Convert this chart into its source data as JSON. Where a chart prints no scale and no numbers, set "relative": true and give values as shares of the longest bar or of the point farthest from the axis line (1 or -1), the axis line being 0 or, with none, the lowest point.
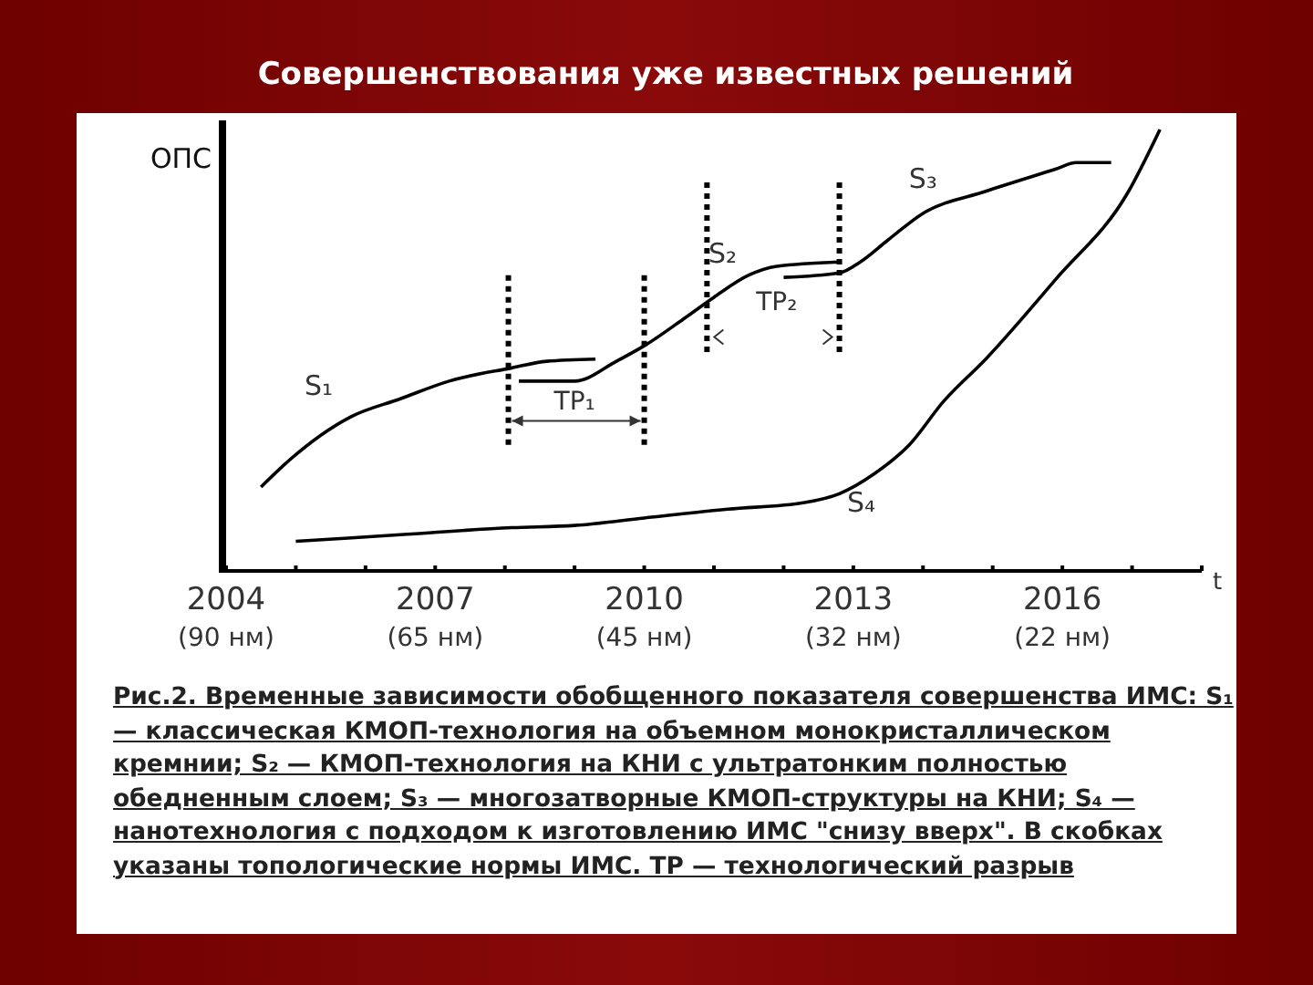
{
  "chart_data": {
    "type": "line",
    "title": "Совершенствования уже известных решений",
    "xlabel": "t",
    "ylabel": "ОПС",
    "relative": true,
    "legend": false,
    "grid": false,
    "marker": "none",
    "line_style": "solid",
    "xlim": [
      2004,
      2018
    ],
    "xticks": [
      2004,
      {
        "value": 2005,
        "label": null
      },
      {
        "value": 2006,
        "label": null
      },
      2007,
      {
        "value": 2008,
        "label": null
      },
      {
        "value": 2009,
        "label": null
      },
      2010,
      {
        "value": 2011,
        "label": null
      },
      {
        "value": 2012,
        "label": null
      },
      2013,
      {
        "value": 2014,
        "label": null
      },
      {
        "value": 2015,
        "label": null
      },
      2016,
      {
        "value": 2017,
        "label": null
      },
      {
        "value": 2018,
        "label": null
      }
    ],
    "series": [
      {
        "name": "S₁",
        "color": "#000000",
        "x": [
          2004.5,
          2004.9,
          2005.8,
          2006.5,
          2007.2,
          2008.1,
          2008.6,
          2009.3
        ],
        "values": [
          0.19,
          0.25,
          0.35,
          0.39,
          0.43,
          0.46,
          0.475,
          0.48
        ]
      },
      {
        "name": "S₂",
        "color": "#000000",
        "x": [
          2008.2,
          2009.0,
          2009.6,
          2010.0,
          2010.6,
          2011.0,
          2011.5,
          2011.9,
          2012.8
        ],
        "values": [
          0.43,
          0.43,
          0.475,
          0.51,
          0.575,
          0.62,
          0.67,
          0.69,
          0.7
        ]
      },
      {
        "name": "S₃",
        "color": "#000000",
        "x": [
          2012.0,
          2012.8,
          2013.1,
          2013.5,
          2014.0,
          2014.9,
          2015.9,
          2016.2,
          2016.7
        ],
        "values": [
          0.665,
          0.675,
          0.7,
          0.75,
          0.81,
          0.86,
          0.91,
          0.925,
          0.925
        ]
      },
      {
        "name": "S₄",
        "color": "#000000",
        "x": [
          2005.0,
          2006.5,
          2008.1,
          2009.0,
          2010.0,
          2011.2,
          2012.3,
          2012.8,
          2013.3,
          2013.8,
          2014.3,
          2014.9,
          2015.9,
          2016.95,
          2017.4
        ],
        "values": [
          0.067,
          0.082,
          0.098,
          0.103,
          0.12,
          0.14,
          0.155,
          0.175,
          0.22,
          0.285,
          0.385,
          0.48,
          0.66,
          0.86,
          1.0
        ]
      }
    ],
    "ref_lines": [
      {
        "axis": "x",
        "value": 2008.05,
        "line_style": "dotted"
      },
      {
        "axis": "x",
        "value": 2010.0,
        "line_style": "dotted"
      },
      {
        "axis": "x",
        "value": 2010.9,
        "line_style": "dotted"
      },
      {
        "axis": "x",
        "value": 2012.8,
        "line_style": "dotted"
      }
    ],
    "annotations": [
      "TP₁",
      "TP₂",
      "(90 нм)",
      "(65 нм)",
      "(45 нм)",
      "(32 нм)",
      "(22 нм)",
      "Рис.2. Временные зависимости обобщенного показателя совершенства ИМС: S₁ — классическая КМОП-технология на объемном монокристаллическом кремнии; S₂ — КМОП-технология на КНИ с ультратонким полностью обедненным слоем; S₃ — многозатворные КМОП-структуры на КНИ; S₄ — нанотехнология с подходом к изготовлению ИМС \"снизу вверх\". В скобках указаны топологические нормы ИМС. TP — технологический разрыв"
    ]
  }
}
